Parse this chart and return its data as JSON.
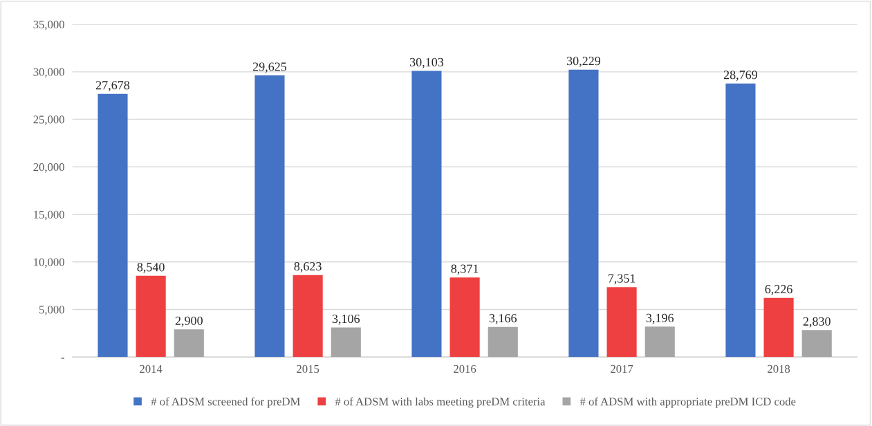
{
  "chart_data": {
    "type": "bar",
    "categories": [
      "2014",
      "2015",
      "2016",
      "2017",
      "2018"
    ],
    "series": [
      {
        "name": "# of ADSM screened for preDM",
        "color": "#4472c4",
        "values": [
          27678,
          29625,
          30103,
          30229,
          28769
        ],
        "value_labels": [
          "27,678",
          "29,625",
          "30,103",
          "30,229",
          "28,769"
        ]
      },
      {
        "name": "# of ADSM with labs meeting preDM criteria",
        "color": "#ee4040",
        "values": [
          8540,
          8623,
          8371,
          7351,
          6226
        ],
        "value_labels": [
          "8,540",
          "8,623",
          "8,371",
          "7,351",
          "6,226"
        ]
      },
      {
        "name": "# of ADSM with appropriate preDM ICD code",
        "color": "#a5a5a5",
        "values": [
          2900,
          3106,
          3166,
          3196,
          2830
        ],
        "value_labels": [
          "2,900",
          "3,106",
          "3,166",
          "3,196",
          "2,830"
        ]
      }
    ],
    "ylim": [
      0,
      35000
    ],
    "yticks": [
      {
        "value": 0,
        "label": "-"
      },
      {
        "value": 5000,
        "label": "5,000"
      },
      {
        "value": 10000,
        "label": "10,000"
      },
      {
        "value": 15000,
        "label": "15,000"
      },
      {
        "value": 20000,
        "label": "20,000"
      },
      {
        "value": 25000,
        "label": "25,000"
      },
      {
        "value": 30000,
        "label": "30,000"
      },
      {
        "value": 35000,
        "label": "35,000"
      }
    ],
    "grid": "y",
    "legend": "bottom"
  }
}
